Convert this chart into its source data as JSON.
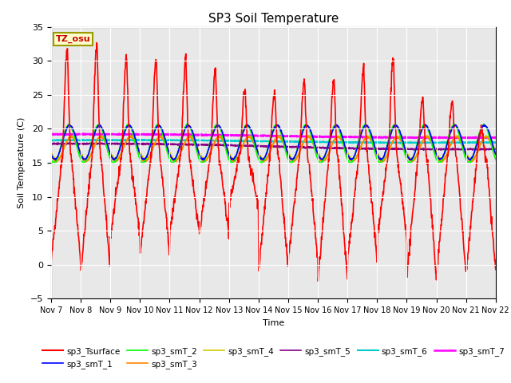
{
  "title": "SP3 Soil Temperature",
  "xlabel": "Time",
  "ylabel": "Soil Temperature (C)",
  "ylim": [
    -5,
    35
  ],
  "yticks": [
    -5,
    0,
    5,
    10,
    15,
    20,
    25,
    30,
    35
  ],
  "x_tick_labels": [
    "Nov 7",
    "Nov 8",
    "Nov 9",
    "Nov 10",
    "Nov 11",
    "Nov 12",
    "Nov 13",
    "Nov 14",
    "Nov 15",
    "Nov 16",
    "Nov 17",
    "Nov 18",
    "Nov 19",
    "Nov 20",
    "Nov 21",
    "Nov 22"
  ],
  "tz_label": "TZ_osu",
  "background_color": "#e8e8e8",
  "series_order": [
    "sp3_Tsurface",
    "sp3_smT_1",
    "sp3_smT_2",
    "sp3_smT_3",
    "sp3_smT_4",
    "sp3_smT_5",
    "sp3_smT_6",
    "sp3_smT_7"
  ],
  "series": {
    "sp3_Tsurface": {
      "color": "#ff0000",
      "lw": 1.2
    },
    "sp3_smT_1": {
      "color": "#0000ff",
      "lw": 1.2
    },
    "sp3_smT_2": {
      "color": "#00ff00",
      "lw": 1.2
    },
    "sp3_smT_3": {
      "color": "#ff8800",
      "lw": 1.2
    },
    "sp3_smT_4": {
      "color": "#cccc00",
      "lw": 1.2
    },
    "sp3_smT_5": {
      "color": "#880088",
      "lw": 1.5
    },
    "sp3_smT_6": {
      "color": "#00cccc",
      "lw": 1.5
    },
    "sp3_smT_7": {
      "color": "#ff00ff",
      "lw": 1.8
    }
  }
}
